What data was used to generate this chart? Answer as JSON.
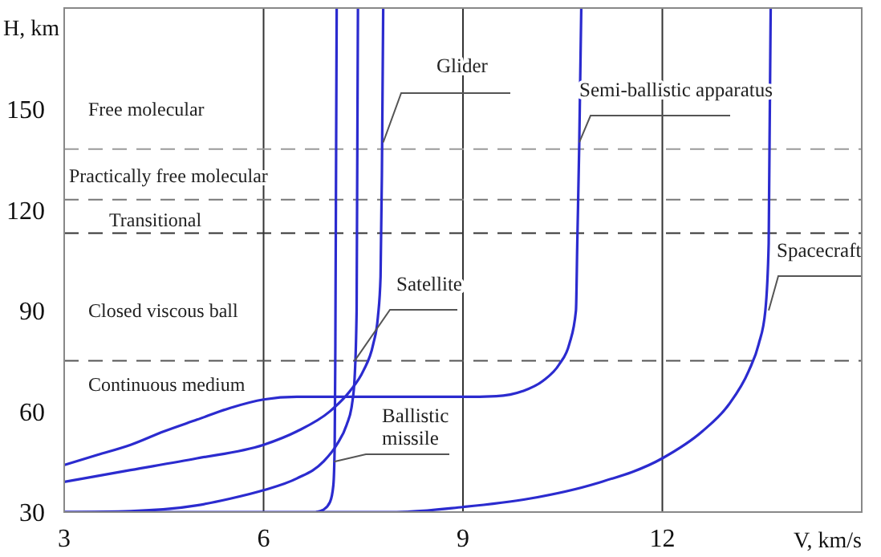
{
  "chart_data": {
    "type": "line",
    "xlabel": "V,  km/s",
    "ylabel": "H, km",
    "xlim": [
      3,
      15
    ],
    "xticks": [
      3,
      6,
      9,
      12
    ],
    "ylim": [
      30,
      180
    ],
    "yticks": [
      30,
      60,
      90,
      120,
      150
    ],
    "grid": "x",
    "legend": false,
    "marker": "none",
    "line_style": "solid",
    "series": [
      {
        "name": "Glider",
        "color": "#2b2bcf",
        "x": [
          3,
          4,
          5,
          6,
          6.5,
          7,
          7.3,
          7.5,
          7.65,
          7.72,
          7.76,
          7.78,
          7.8
        ],
        "values": [
          39,
          42.5,
          46,
          50,
          54,
          60,
          66,
          72,
          80,
          88,
          100,
          130,
          180
        ]
      },
      {
        "name": "Semi-ballistic apparatus",
        "color": "#2b2bcf",
        "x": [
          3,
          3.5,
          4,
          4.5,
          5,
          5.5,
          6,
          6.5,
          7,
          8,
          9,
          9.5,
          9.9,
          10.2,
          10.45,
          10.6,
          10.7,
          10.72,
          10.75,
          10.78
        ],
        "values": [
          44,
          47,
          50,
          54,
          57.5,
          61,
          63.5,
          64.3,
          64.3,
          64.3,
          64.3,
          64.5,
          66,
          69,
          74,
          80,
          90,
          110,
          140,
          180
        ]
      },
      {
        "name": "Spacecraft",
        "color": "#2b2bcf",
        "x": [
          3,
          6,
          8,
          9,
          10,
          11,
          12,
          12.6,
          13,
          13.3,
          13.45,
          13.55,
          13.6,
          13.63
        ],
        "values": [
          30,
          30,
          30,
          31.5,
          34,
          38.5,
          46,
          54,
          62,
          72,
          80,
          90,
          110,
          180
        ]
      },
      {
        "name": "Satellite",
        "color": "#2b2bcf",
        "x": [
          3,
          4,
          5,
          5.5,
          6,
          6.5,
          6.9,
          7.1,
          7.25,
          7.33,
          7.37,
          7.4,
          7.42
        ],
        "values": [
          30,
          30.3,
          32,
          34,
          36.5,
          40,
          45,
          50,
          56,
          62,
          70,
          90,
          180
        ]
      },
      {
        "name": "Ballistic missile",
        "color": "#2b2bcf",
        "x": [
          6.79,
          6.9,
          7.0,
          7.05,
          7.07,
          7.08,
          7.1
        ],
        "values": [
          30,
          30.7,
          33,
          38,
          50,
          80,
          180
        ]
      }
    ],
    "ref_lines": [
      {
        "axis": "y",
        "value": 138,
        "color": "#9a9a9a",
        "line_style": "dashed"
      },
      {
        "axis": "y",
        "value": 123,
        "color": "#777777",
        "line_style": "dashed"
      },
      {
        "axis": "y",
        "value": 113,
        "color": "#333333",
        "line_style": "dashed"
      },
      {
        "axis": "y",
        "value": 75,
        "color": "#555555",
        "line_style": "dashed"
      }
    ],
    "annotations": [
      "Free molecular",
      "Practically free molecular",
      "Transitional",
      "Closed viscous ball",
      "Continuous medium"
    ]
  }
}
